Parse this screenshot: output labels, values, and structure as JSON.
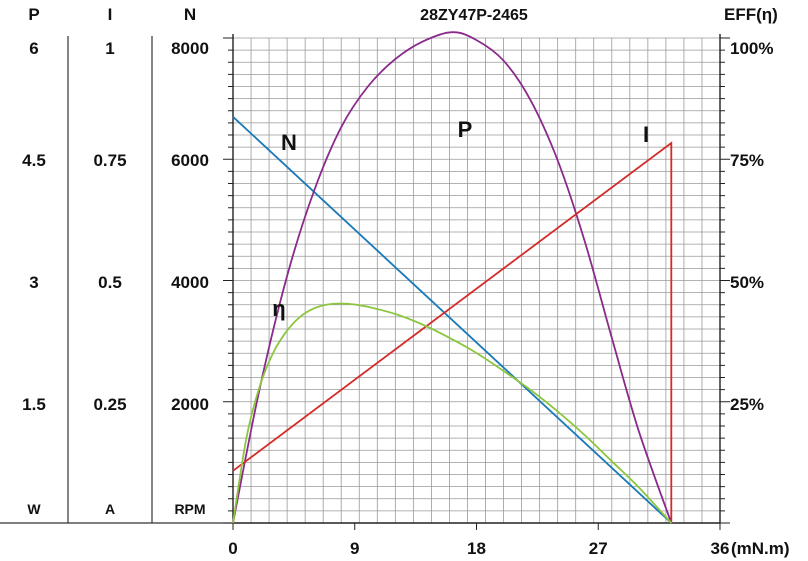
{
  "chart_data": {
    "type": "line",
    "title": "28ZY47P-2465",
    "xlabel": "(mN.m)",
    "xlim": [
      0,
      36
    ],
    "x_ticks": [
      "0",
      "9",
      "18",
      "27",
      "36"
    ],
    "left_axes": [
      {
        "header": "P",
        "unit": "W",
        "ticks": [
          "6",
          "4.5",
          "3",
          "1.5"
        ]
      },
      {
        "header": "I",
        "unit": "A",
        "ticks": [
          "1",
          "0.75",
          "0.5",
          "0.25"
        ]
      },
      {
        "header": "N",
        "unit": "RPM",
        "ticks": [
          "8000",
          "6000",
          "4000",
          "2000"
        ]
      }
    ],
    "right_axis": {
      "header": "EFF(η)",
      "ticks": [
        "100%",
        "75%",
        "50%",
        "25%"
      ]
    },
    "ylim_rpm": [
      0,
      8000
    ],
    "grid": true,
    "series": [
      {
        "name": "N",
        "color": "#1a7ab8",
        "label": "N",
        "x": [
          0,
          32.4
        ],
        "y": [
          6700,
          0
        ]
      },
      {
        "name": "P",
        "color": "#8a2a8c",
        "label": "P",
        "x": [
          0,
          2,
          4,
          6,
          8,
          10,
          12,
          14,
          16.2,
          18,
          20,
          22,
          24,
          26,
          28,
          30,
          32.4
        ],
        "y": [
          0,
          1.72,
          3.12,
          4.2,
          5.0,
          5.52,
          5.86,
          6.08,
          6.2,
          6.1,
          5.84,
          5.34,
          4.58,
          3.56,
          2.34,
          1.16,
          0
        ]
      },
      {
        "name": "I",
        "color": "#d42a2a",
        "label": "I",
        "x": [
          0,
          32.4,
          32.4
        ],
        "y": [
          0.11,
          0.8,
          0
        ]
      },
      {
        "name": "η",
        "color": "#8cc63f",
        "label": "η",
        "x": [
          0,
          1,
          2,
          3,
          4,
          5,
          6,
          7,
          8,
          9,
          10,
          12,
          14,
          16,
          18,
          20,
          22,
          24,
          26,
          28,
          30,
          32.4
        ],
        "y": [
          0,
          18,
          29,
          36,
          40.5,
          43.5,
          45.2,
          46,
          46.2,
          46,
          45.5,
          44,
          41.8,
          39,
          35.8,
          32,
          28,
          23.5,
          18.5,
          13,
          7.5,
          0
        ]
      }
    ]
  }
}
